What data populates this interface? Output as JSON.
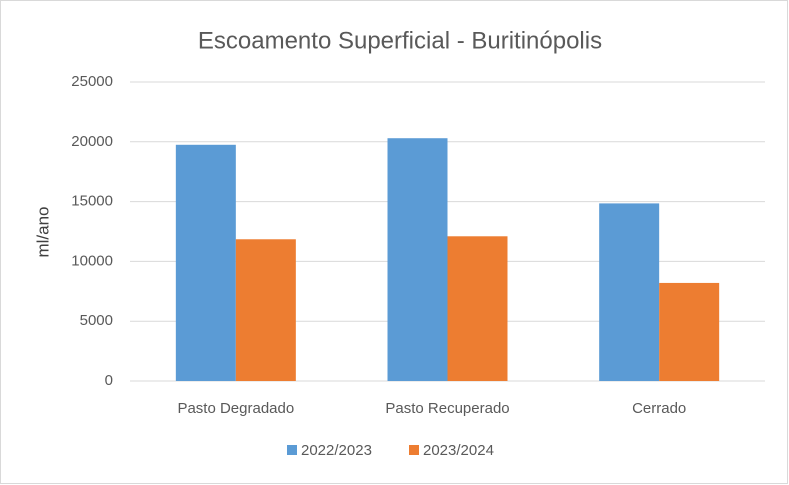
{
  "chart_data": {
    "type": "bar",
    "title": "Escoamento Superficial - Buritinópolis",
    "y_label": "ml/ano",
    "categories": [
      "Pasto Degradado",
      "Pasto Recuperado",
      "Cerrado"
    ],
    "series": [
      {
        "name": "2022/2023",
        "color": "#5b9bd5",
        "values": [
          19750,
          20300,
          14850
        ]
      },
      {
        "name": "2023/2024",
        "color": "#ed7d31",
        "values": [
          11850,
          12100,
          8200
        ]
      }
    ],
    "ylim": [
      0,
      25000
    ],
    "yticks": [
      0,
      5000,
      10000,
      15000,
      20000,
      25000
    ],
    "grid": true,
    "legend": "bottom"
  }
}
